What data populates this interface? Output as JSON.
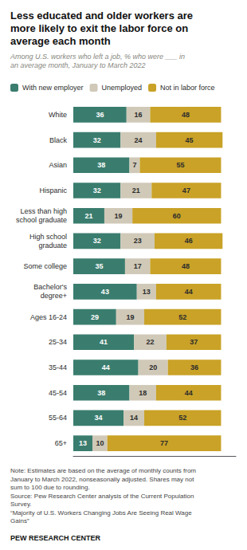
{
  "chart_data": {
    "type": "bar",
    "orientation": "horizontal",
    "stacked": true,
    "data_labels": true,
    "tick_labels": "y",
    "grid": false,
    "legend": "top",
    "title": "Less educated and older workers are\nmore likely to exit the labor force on\naverage each month",
    "subtitle": "Among U.S. workers who left a job, % who were ___ in\nan average month, January to March 2022",
    "note": "Note: Estimates are based on the average of monthly counts from\nJanuary to March 2022, nonseasonally adjusted. Shares may not\nsum to 100 due to rounding.\nSource: Pew Research Center analysis of the Current Population\nSurvey.\n“Majority of U.S. Workers Changing Jobs Are Seeing Real Wage\nGains”",
    "source": "PEW RESEARCH CENTER",
    "categories": [
      "White",
      "Black",
      "Asian",
      "Hispanic",
      "Less than high\nschool graduate",
      "High school\ngraduate",
      "Some college",
      "Bachelor's\ndegree+",
      "Ages 16-24",
      "25-34",
      "35-44",
      "45-54",
      "55-64",
      "65+"
    ],
    "series": [
      {
        "name": "With new employer",
        "color": "#3a7d6e",
        "values": [
          36,
          32,
          38,
          32,
          21,
          32,
          35,
          43,
          29,
          41,
          44,
          38,
          34,
          13
        ]
      },
      {
        "name": "Unemployed",
        "color": "#d0c9b8",
        "values": [
          16,
          24,
          7,
          21,
          19,
          23,
          17,
          13,
          19,
          22,
          20,
          18,
          14,
          10
        ]
      },
      {
        "name": "Not in labor force",
        "color": "#c9a227",
        "values": [
          48,
          45,
          55,
          47,
          60,
          46,
          48,
          44,
          52,
          37,
          36,
          44,
          52,
          77
        ]
      }
    ],
    "xlim": [
      0,
      110
    ]
  }
}
